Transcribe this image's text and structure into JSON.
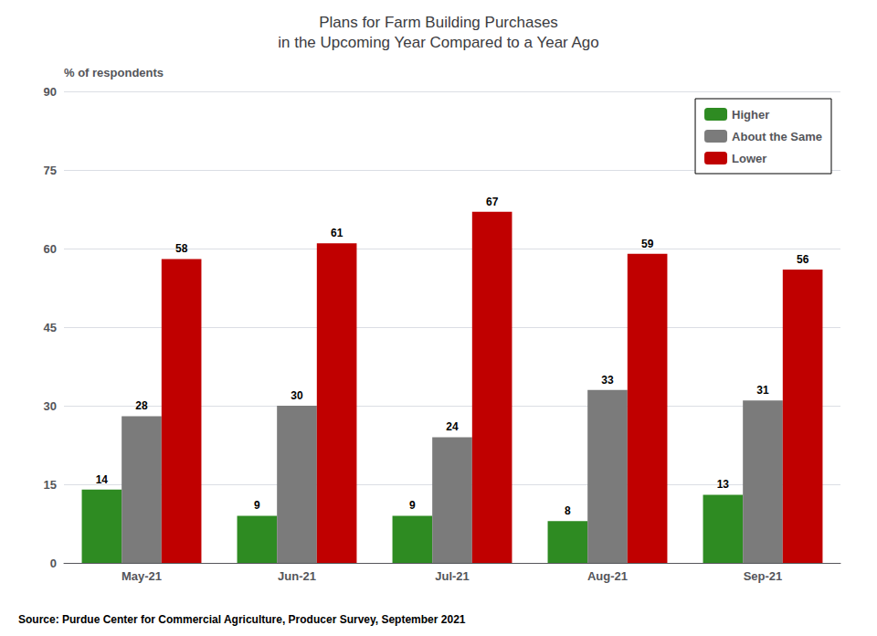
{
  "chart_data": {
    "type": "bar",
    "title": "Plans for Farm Building Purchases\nin the Upcoming Year Compared to a Year Ago",
    "ylabel": "% of respondents",
    "source": "Source: Purdue Center for Commercial Agriculture, Producer Survey, September 2021",
    "categories": [
      "May-21",
      "Jun-21",
      "Jul-21",
      "Aug-21",
      "Sep-21"
    ],
    "series": [
      {
        "name": "Higher",
        "color": "#2E8B22",
        "values": [
          14,
          9,
          9,
          8,
          13
        ]
      },
      {
        "name": "About the Same",
        "color": "#7B7B7B",
        "values": [
          28,
          30,
          24,
          33,
          31
        ]
      },
      {
        "name": "Lower",
        "color": "#C00000",
        "values": [
          58,
          61,
          67,
          59,
          56
        ]
      }
    ],
    "ylim": [
      0,
      90
    ],
    "yticks": [
      0,
      15,
      30,
      45,
      60,
      75,
      90
    ],
    "grid": true,
    "legend": "upper right",
    "data_labels": true
  }
}
